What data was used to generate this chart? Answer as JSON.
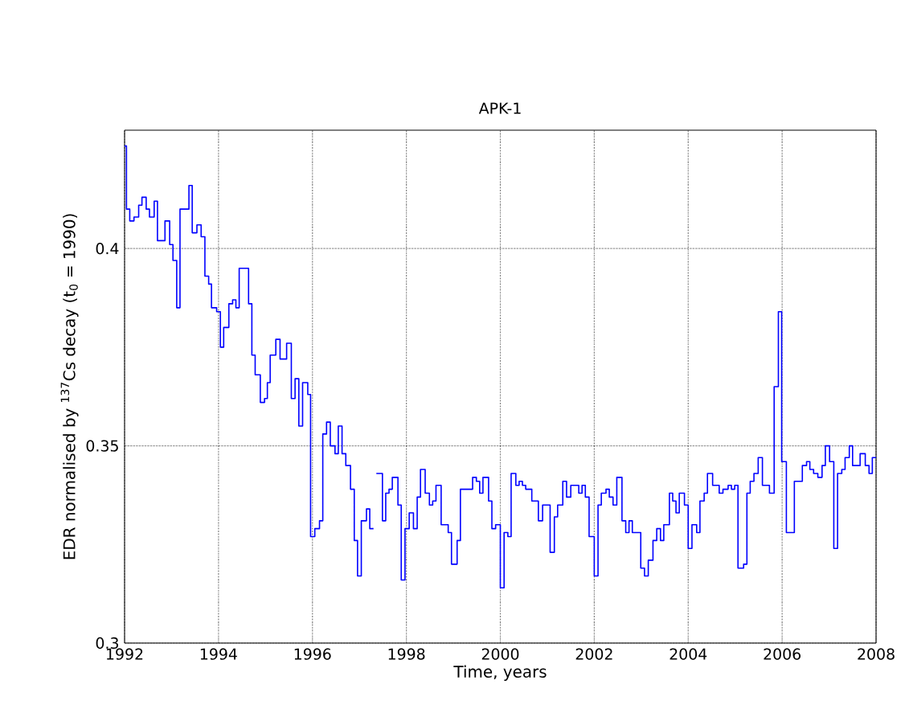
{
  "chart_data": {
    "type": "step",
    "title": "APK-1",
    "xlabel": "Time, years",
    "ylabel": "EDR normalised by $^{137}$Cs decay (t$_{0}$ = 1990)",
    "xlim": [
      1992,
      2008
    ],
    "ylim": [
      0.3,
      0.43
    ],
    "xticks": [
      1992,
      1994,
      1996,
      1998,
      2000,
      2002,
      2004,
      2006,
      2008
    ],
    "yticks": [
      0.3,
      0.35,
      0.4
    ],
    "grid": true,
    "color": "#0000ff",
    "x": [
      1992.0,
      1992.04,
      1992.11,
      1992.2,
      1992.3,
      1992.37,
      1992.46,
      1992.53,
      1992.63,
      1992.7,
      1992.77,
      1992.86,
      1992.96,
      1993.03,
      1993.11,
      1993.18,
      1993.37,
      1993.44,
      1993.54,
      1993.63,
      1993.71,
      1993.79,
      1993.85,
      1993.96,
      1994.04,
      1994.11,
      1994.22,
      1994.3,
      1994.37,
      1994.44,
      1994.64,
      1994.71,
      1994.78,
      1994.89,
      1994.98,
      1995.04,
      1995.1,
      1995.22,
      1995.31,
      1995.45,
      1995.55,
      1995.63,
      1995.71,
      1995.79,
      1995.9,
      1995.96,
      1996.05,
      1996.15,
      1996.22,
      1996.3,
      1996.38,
      1996.48,
      1996.55,
      1996.63,
      1996.71,
      1996.81,
      1996.89,
      1996.96,
      1997.04,
      1997.15,
      1997.22,
      1997.3,
      1997.36,
      1997.49,
      1997.56,
      1997.63,
      1997.7,
      1997.82,
      1997.89,
      1997.97,
      1998.06,
      1998.15,
      1998.23,
      1998.3,
      1998.4,
      1998.49,
      1998.56,
      1998.63,
      1998.74,
      1998.82,
      1998.89,
      1998.96,
      1999.08,
      1999.15,
      1999.23,
      1999.3,
      1999.41,
      1999.49,
      1999.56,
      1999.63,
      1999.75,
      1999.82,
      1999.9,
      2000.0,
      2000.08,
      2000.16,
      2000.23,
      2000.33,
      2000.4,
      2000.47,
      2000.54,
      2000.67,
      2000.76,
      2000.81,
      2000.9,
      2000.99,
      2001.06,
      2001.15,
      2001.22,
      2001.33,
      2001.41,
      2001.5,
      2001.67,
      2001.74,
      2001.81,
      2001.89,
      2002.0,
      2002.08,
      2002.15,
      2002.25,
      2002.32,
      2002.4,
      2002.48,
      2002.59,
      2002.67,
      2002.74,
      2002.81,
      2002.91,
      2002.99,
      2003.07,
      2003.15,
      2003.25,
      2003.33,
      2003.41,
      2003.48,
      2003.6,
      2003.67,
      2003.74,
      2003.81,
      2003.92,
      2004.0,
      2004.08,
      2004.18,
      2004.25,
      2004.34,
      2004.41,
      2004.52,
      2004.66,
      2004.74,
      2004.85,
      2004.92,
      2004.99,
      2005.06,
      2005.18,
      2005.25,
      2005.32,
      2005.4,
      2005.49,
      2005.58,
      2005.73,
      2005.83,
      2005.92,
      2005.99,
      2006.09,
      2006.19,
      2006.26,
      2006.43,
      2006.52,
      2006.59,
      2006.67,
      2006.76,
      2006.85,
      2006.92,
      2007.01,
      2007.1,
      2007.18,
      2007.27,
      2007.34,
      2007.43,
      2007.5,
      2007.66,
      2007.77,
      2007.85,
      2007.92
    ],
    "values": [
      0.426,
      0.41,
      0.407,
      0.408,
      0.411,
      0.413,
      0.41,
      0.408,
      0.412,
      0.402,
      0.402,
      0.407,
      0.401,
      0.397,
      0.385,
      0.41,
      0.416,
      0.404,
      0.406,
      0.403,
      0.393,
      0.391,
      0.385,
      0.384,
      0.375,
      0.38,
      0.386,
      0.387,
      0.385,
      0.395,
      0.386,
      0.373,
      0.368,
      0.361,
      0.362,
      0.366,
      0.373,
      0.377,
      0.372,
      0.376,
      0.362,
      0.367,
      0.355,
      0.366,
      0.363,
      0.327,
      0.329,
      0.331,
      0.353,
      0.356,
      0.35,
      0.348,
      0.355,
      0.348,
      0.345,
      0.339,
      0.326,
      0.317,
      0.331,
      0.334,
      0.329,
      null,
      0.343,
      0.331,
      0.338,
      0.339,
      0.342,
      0.335,
      0.316,
      0.329,
      0.333,
      0.329,
      0.337,
      0.344,
      0.338,
      0.335,
      0.336,
      0.34,
      0.33,
      0.33,
      0.328,
      0.32,
      0.326,
      0.339,
      0.339,
      0.339,
      0.342,
      0.341,
      0.338,
      0.342,
      0.336,
      0.329,
      0.33,
      0.314,
      0.328,
      0.327,
      0.343,
      0.34,
      0.341,
      0.34,
      0.339,
      0.336,
      0.336,
      0.331,
      0.335,
      0.335,
      0.323,
      0.332,
      0.335,
      0.341,
      0.337,
      0.34,
      0.338,
      0.34,
      0.337,
      0.327,
      0.317,
      0.335,
      0.338,
      0.339,
      0.337,
      0.335,
      0.342,
      0.331,
      0.328,
      0.331,
      0.328,
      0.328,
      0.319,
      0.317,
      0.321,
      0.326,
      0.329,
      0.326,
      0.33,
      0.338,
      0.336,
      0.333,
      0.338,
      0.335,
      0.324,
      0.33,
      0.328,
      0.336,
      0.338,
      0.343,
      0.34,
      0.338,
      0.339,
      0.34,
      0.339,
      0.34,
      0.319,
      0.32,
      0.338,
      0.341,
      0.343,
      0.347,
      0.34,
      0.338,
      0.365,
      0.384,
      0.346,
      0.328,
      0.328,
      0.341,
      0.345,
      0.346,
      0.344,
      0.343,
      0.342,
      0.345,
      0.35,
      0.346,
      0.324,
      0.343,
      0.344,
      0.347,
      0.35,
      0.345,
      0.348,
      0.345,
      0.343,
      0.347
    ]
  }
}
